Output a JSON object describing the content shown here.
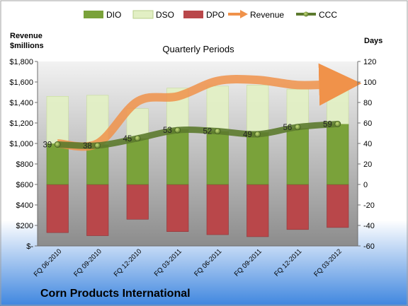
{
  "chart_data": {
    "type": "bar",
    "title": "Quarterly Periods",
    "footer": "Corn Products International",
    "y_left_label_line1": "Revenue",
    "y_left_label_line2": "$millions",
    "y_right_label": "Days",
    "categories": [
      "FQ 06-2010",
      "FQ 09-2010",
      "FQ 12-2010",
      "FQ 03-2011",
      "FQ 06-2011",
      "FQ 09-2011",
      "FQ 12-2011",
      "FQ 03-2012"
    ],
    "y_left_ticks": [
      "$-",
      "$200",
      "$400",
      "$600",
      "$800",
      "$1,000",
      "$1,200",
      "$1,400",
      "$1,600",
      "$1,800"
    ],
    "y_left_range": [
      0,
      1800
    ],
    "y_right_ticks": [
      "-60",
      "-40",
      "-20",
      "0",
      "20",
      "40",
      "60",
      "80",
      "100",
      "120"
    ],
    "y_right_range": [
      -60,
      120
    ],
    "legend_position": "top",
    "series": [
      {
        "name": "DIO",
        "axis": "right",
        "color": "#7aa23a",
        "values": [
          40,
          39,
          45,
          54,
          52,
          51,
          55,
          59
        ]
      },
      {
        "name": "DSO",
        "axis": "right",
        "color": "#e2efc4",
        "values": [
          86,
          87,
          74,
          94,
          96,
          97,
          93,
          101
        ]
      },
      {
        "name": "DPO",
        "axis": "right",
        "color": "#b9474a",
        "values": [
          -47,
          -50,
          -34,
          -46,
          -49,
          -51,
          -44,
          -42
        ]
      },
      {
        "name": "Revenue",
        "axis": "left",
        "color": "#f0924a",
        "values": [
          1000,
          1000,
          1410,
          1460,
          1610,
          1620,
          1570,
          1580
        ]
      },
      {
        "name": "CCC",
        "axis": "right",
        "color": "#5c7a2e",
        "values": [
          39,
          38,
          45,
          53,
          52,
          49,
          56,
          59
        ]
      }
    ],
    "ccc_labels": [
      "39",
      "38",
      "45",
      "53",
      "52",
      "49",
      "56",
      "59"
    ]
  }
}
